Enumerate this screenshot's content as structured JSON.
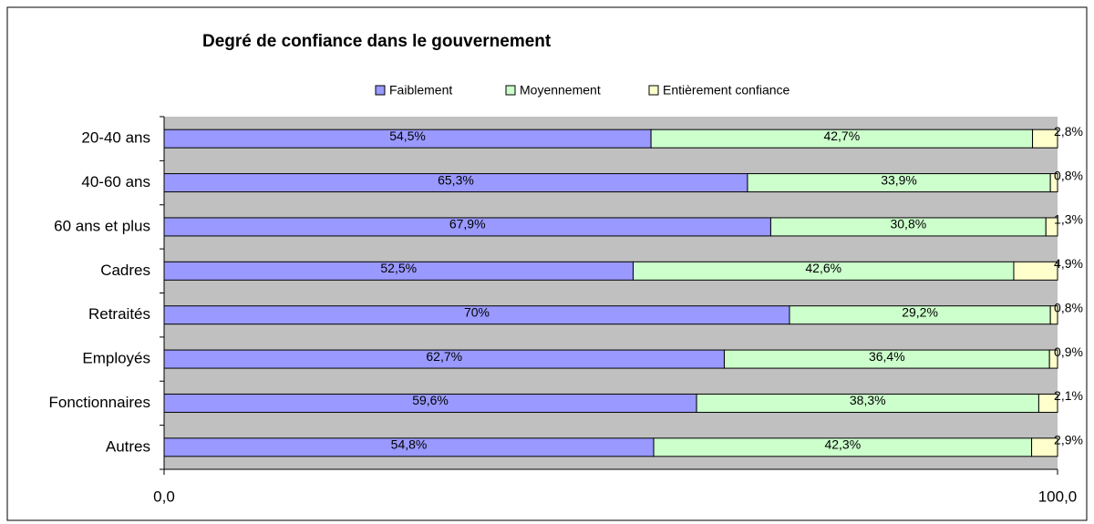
{
  "chart_data": {
    "type": "stacked-bar-horizontal",
    "title": "Degré de confiance dans le gouvernement",
    "categories": [
      "20-40 ans",
      "40-60 ans",
      "60 ans et plus",
      "Cadres",
      "Retraités",
      "Employés",
      "Fonctionnaires",
      "Autres"
    ],
    "series": [
      {
        "name": "Faiblement",
        "color": "#9999ff",
        "values": [
          54.5,
          65.3,
          67.9,
          52.5,
          70,
          62.7,
          59.6,
          54.8
        ],
        "value_labels": [
          "54,5%",
          "65,3%",
          "67,9%",
          "52,5%",
          "70%",
          "62,7%",
          "59,6%",
          "54,8%"
        ]
      },
      {
        "name": "Moyennement",
        "color": "#ccffcc",
        "values": [
          42.7,
          33.9,
          30.8,
          42.6,
          29.2,
          36.4,
          38.3,
          42.3
        ],
        "value_labels": [
          "42,7%",
          "33,9%",
          "30,8%",
          "42,6%",
          "29,2%",
          "36,4%",
          "38,3%",
          "42,3%"
        ]
      },
      {
        "name": "Entièrement confiance",
        "color": "#ffffcc",
        "values": [
          2.8,
          0.8,
          1.3,
          4.9,
          0.8,
          0.9,
          2.1,
          2.9
        ],
        "value_labels": [
          "2,8%",
          "0,8%",
          "1,3%",
          "4,9%",
          "0,8%",
          "0,9%",
          "2,1%",
          "2,9%"
        ]
      }
    ],
    "xlim": [
      0,
      100
    ],
    "xticks": [
      {
        "value": 0,
        "label": "0,0"
      },
      {
        "value": 100,
        "label": "100,0"
      }
    ],
    "plot_background": "#c0c0c0",
    "legend": "top"
  }
}
